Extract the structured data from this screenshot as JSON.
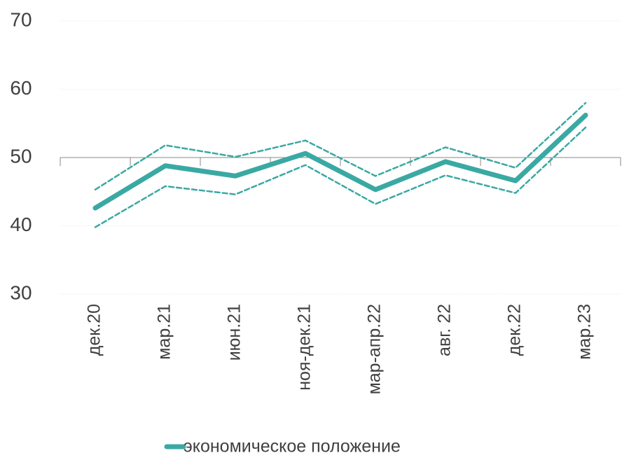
{
  "chart_data": {
    "type": "line",
    "categories": [
      "дек.20",
      "мар.21",
      "июн.21",
      "ноя-дек.21",
      "мар-апр.22",
      "авг. 22",
      "дек.22",
      "мар.23"
    ],
    "series": [
      {
        "name": "экономическое положение",
        "color": "#3aa9a3",
        "values": [
          42.6,
          48.8,
          47.3,
          50.6,
          45.3,
          49.4,
          46.6,
          56.2
        ]
      },
      {
        "color": "#3aa9a3",
        "style": "dashed",
        "values": [
          45.3,
          51.8,
          50.1,
          52.5,
          47.3,
          51.5,
          48.5,
          58.0
        ]
      },
      {
        "color": "#3aa9a3",
        "style": "dashed",
        "values": [
          39.8,
          45.8,
          44.6,
          48.9,
          43.2,
          47.4,
          44.8,
          54.4
        ]
      }
    ],
    "ylim": [
      30,
      70
    ],
    "yticks": [
      30,
      40,
      50,
      60,
      70
    ],
    "x_axis_at": 50,
    "grid": true,
    "legend": "bottom"
  }
}
